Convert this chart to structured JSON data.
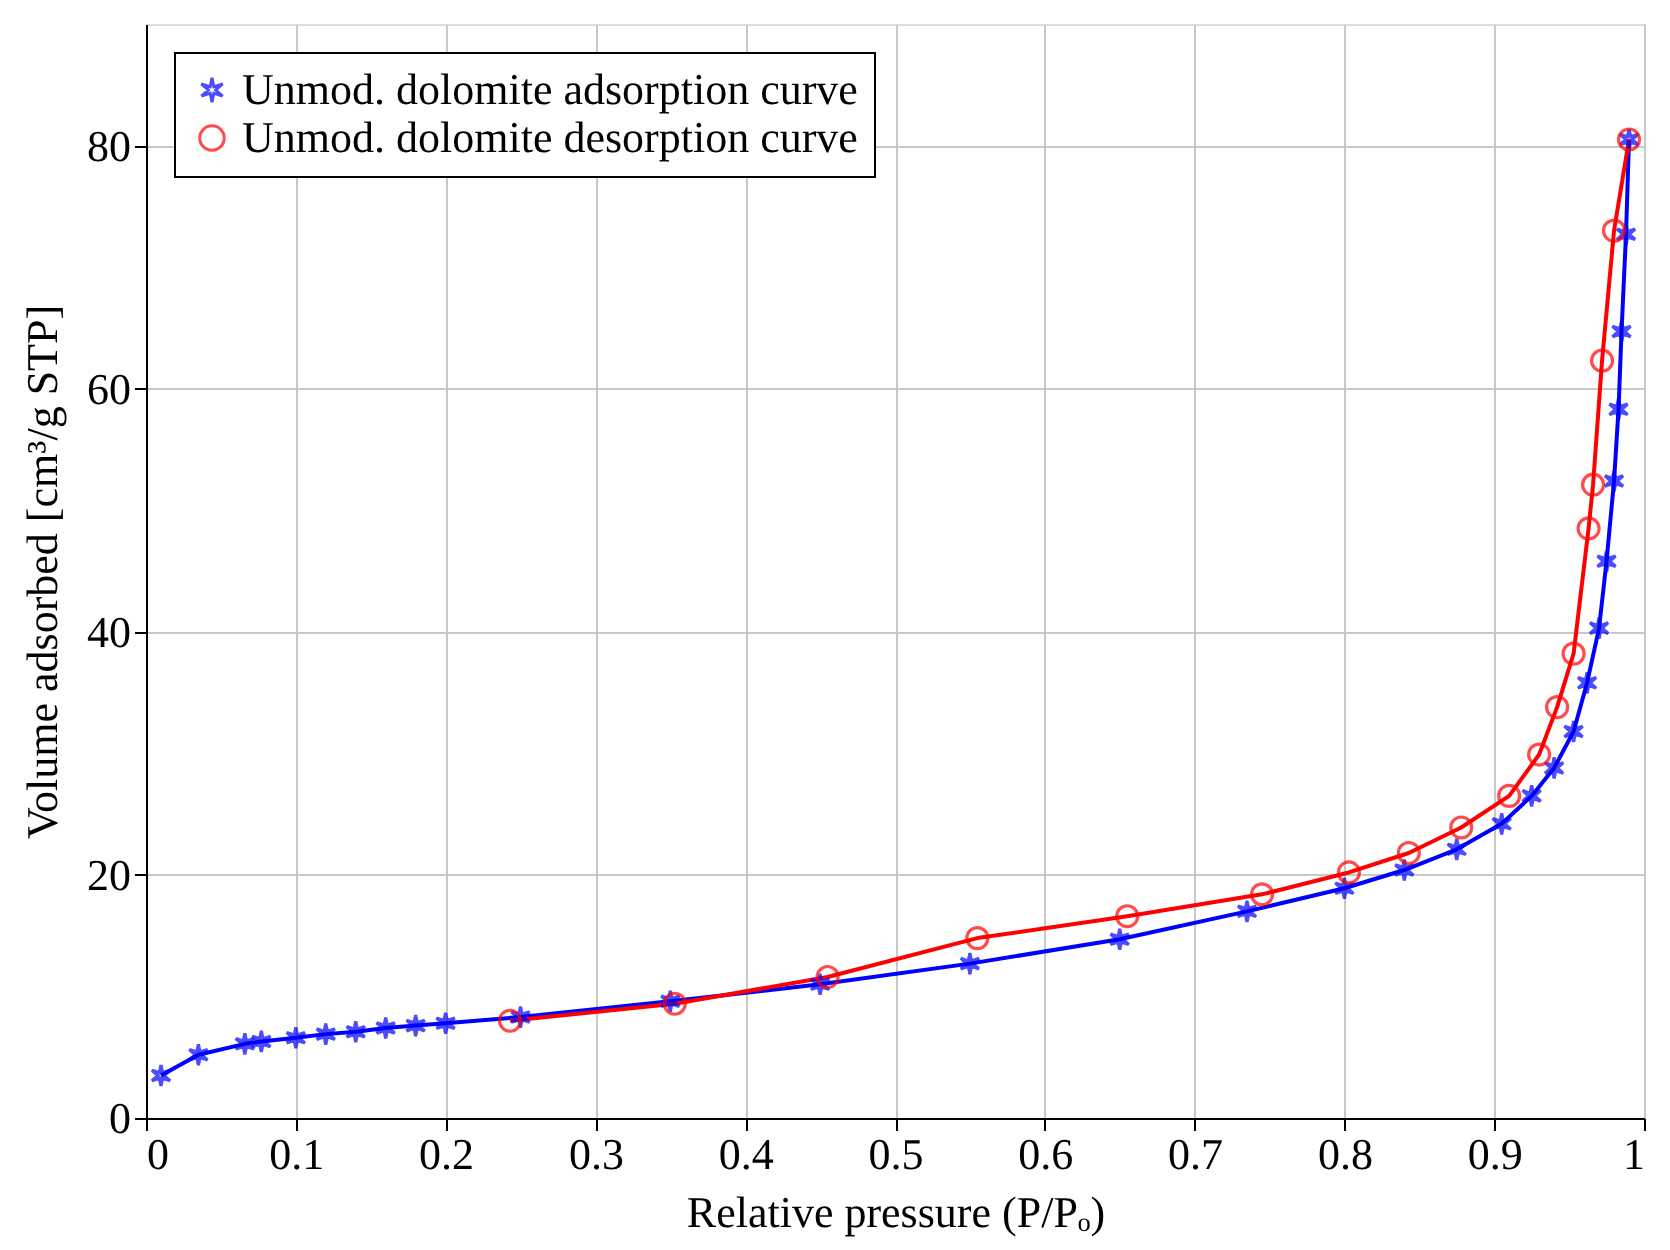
{
  "chart_data": {
    "type": "line",
    "xlabel": "Relative pressure (P/Pₒ)",
    "ylabel": "Volume adsorbed [cm³/g STP]",
    "xlim": [
      0,
      1
    ],
    "ylim": [
      0,
      90
    ],
    "xticks": [
      0,
      0.1,
      0.2,
      0.3,
      0.4,
      0.5,
      0.6,
      0.7,
      0.8,
      0.9,
      1
    ],
    "yticks": [
      0,
      20,
      40,
      60,
      80
    ],
    "grid": true,
    "legend": "top left",
    "line_style": "solid",
    "series": [
      {
        "name": "Unmod. dolomite adsorption curve",
        "color": "#0000ff",
        "marker": "cross",
        "x": [
          0.01,
          0.035,
          0.066,
          0.077,
          0.1,
          0.12,
          0.14,
          0.16,
          0.18,
          0.2,
          0.25,
          0.35,
          0.45,
          0.55,
          0.65,
          0.735,
          0.8,
          0.84,
          0.875,
          0.905,
          0.925,
          0.94,
          0.953,
          0.962,
          0.97,
          0.975,
          0.98,
          0.983,
          0.985,
          0.988,
          0.99
        ],
        "values": [
          3.5,
          5.2,
          6.1,
          6.3,
          6.6,
          6.9,
          7.1,
          7.4,
          7.6,
          7.8,
          8.3,
          9.6,
          11.0,
          12.7,
          14.7,
          17.0,
          18.9,
          20.4,
          22.1,
          24.2,
          26.5,
          28.8,
          31.8,
          35.8,
          40.3,
          45.8,
          52.4,
          58.3,
          64.7,
          72.7,
          80.5
        ]
      },
      {
        "name": "Unmod. dolomite desorption curve",
        "color": "#ff0000",
        "marker": "circle",
        "x": [
          0.243,
          0.353,
          0.455,
          0.555,
          0.655,
          0.745,
          0.803,
          0.843,
          0.878,
          0.91,
          0.93,
          0.942,
          0.953,
          0.963,
          0.966,
          0.972,
          0.98,
          0.99
        ],
        "values": [
          8.0,
          9.4,
          11.6,
          14.8,
          16.6,
          18.4,
          20.2,
          21.8,
          23.9,
          26.5,
          29.9,
          33.8,
          38.2,
          48.5,
          52.1,
          62.3,
          73.0,
          80.5
        ]
      }
    ]
  }
}
